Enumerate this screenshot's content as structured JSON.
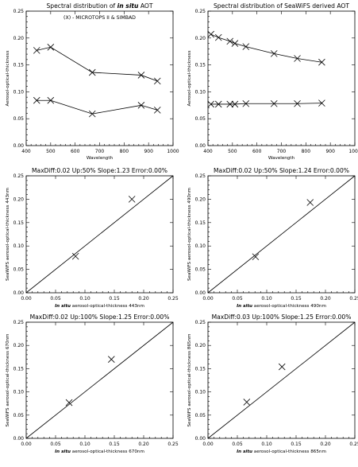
{
  "chart_data": [
    {
      "type": "line",
      "title_parts": [
        {
          "text": "Spectral distribution of ",
          "italic": false
        },
        {
          "text": "in situ",
          "italic": true
        },
        {
          "text": " AOT",
          "italic": false
        }
      ],
      "annotation": "(X) - MICROTOPS II & SIMBAD",
      "xlabel": "Wavelength",
      "ylabel": "Aerosol-optical-thickness",
      "xlim": [
        400,
        1000
      ],
      "ylim": [
        0.0,
        0.25
      ],
      "xticks": [
        "400",
        "500",
        "600",
        "700",
        "800",
        "900",
        "1000"
      ],
      "yticks": [
        "0.00",
        "0.05",
        "0.10",
        "0.15",
        "0.20",
        "0.25"
      ],
      "series": [
        {
          "x": [
            443,
            500,
            670,
            870,
            936
          ],
          "y": [
            0.177,
            0.183,
            0.136,
            0.131,
            0.12
          ]
        },
        {
          "x": [
            443,
            500,
            670,
            870,
            936
          ],
          "y": [
            0.084,
            0.084,
            0.059,
            0.075,
            0.066
          ]
        }
      ]
    },
    {
      "type": "line",
      "title_parts": [
        {
          "text": "Spectral distribution of SeaWiFS derived AOT",
          "italic": false
        }
      ],
      "annotation": "",
      "xlabel": "Wavelength",
      "ylabel": "Aerosol-optical-thickness",
      "xlim": [
        400,
        1000
      ],
      "ylim": [
        0.0,
        0.25
      ],
      "xticks": [
        "400",
        "500",
        "600",
        "700",
        "800",
        "900",
        "1000"
      ],
      "yticks": [
        "0.00",
        "0.05",
        "0.10",
        "0.15",
        "0.20",
        "0.25"
      ],
      "series": [
        {
          "x": [
            412,
            443,
            490,
            510,
            555,
            670,
            765,
            865
          ],
          "y": [
            0.207,
            0.201,
            0.194,
            0.19,
            0.184,
            0.171,
            0.162,
            0.155
          ]
        },
        {
          "x": [
            412,
            443,
            490,
            510,
            555,
            670,
            765,
            865
          ],
          "y": [
            0.077,
            0.077,
            0.077,
            0.077,
            0.078,
            0.078,
            0.078,
            0.079
          ]
        }
      ]
    },
    {
      "type": "scatter",
      "title_parts": [
        {
          "text": "MaxDiff:0.02 Up:50% Slope:1.23 Error:0.00%",
          "italic": false
        }
      ],
      "xlabel_parts": [
        {
          "text": "In situ",
          "italic": true
        },
        {
          "text": " aerosol-optical-thickness 443nm",
          "italic": false
        }
      ],
      "ylabel": "SeaWiFS aerosol-optical-thickness 443nm",
      "xlim": [
        0.0,
        0.25
      ],
      "ylim": [
        0.0,
        0.25
      ],
      "xticks": [
        "0.00",
        "0.05",
        "0.10",
        "0.15",
        "0.20",
        "0.25"
      ],
      "yticks": [
        "0.00",
        "0.05",
        "0.10",
        "0.15",
        "0.20",
        "0.25"
      ],
      "diagonal": true,
      "points": {
        "x": [
          0.084,
          0.18
        ],
        "y": [
          0.078,
          0.2
        ]
      }
    },
    {
      "type": "scatter",
      "title_parts": [
        {
          "text": "MaxDiff:0.02 Up:50% Slope:1.24 Error:0.00%",
          "italic": false
        }
      ],
      "xlabel_parts": [
        {
          "text": "In situ",
          "italic": true
        },
        {
          "text": " aerosol-optical-thickness 490nm",
          "italic": false
        }
      ],
      "ylabel": "SeaWiFS aerosol-optical-thickness 490nm",
      "xlim": [
        0.0,
        0.25
      ],
      "ylim": [
        0.0,
        0.25
      ],
      "xticks": [
        "0.00",
        "0.05",
        "0.10",
        "0.15",
        "0.20",
        "0.25"
      ],
      "yticks": [
        "0.00",
        "0.05",
        "0.10",
        "0.15",
        "0.20",
        "0.25"
      ],
      "diagonal": true,
      "points": {
        "x": [
          0.081,
          0.174
        ],
        "y": [
          0.077,
          0.193
        ]
      }
    },
    {
      "type": "scatter",
      "title_parts": [
        {
          "text": "MaxDiff:0.02 Up:100% Slope:1.25 Error:0.00%",
          "italic": false
        }
      ],
      "xlabel_parts": [
        {
          "text": "In situ",
          "italic": true
        },
        {
          "text": " aerosol-optical-thickness 670nm",
          "italic": false
        }
      ],
      "ylabel": "SeaWiFS aerosol-optical-thickness 670nm",
      "xlim": [
        0.0,
        0.25
      ],
      "ylim": [
        0.0,
        0.25
      ],
      "xticks": [
        "0.00",
        "0.05",
        "0.10",
        "0.15",
        "0.20",
        "0.25"
      ],
      "yticks": [
        "0.00",
        "0.05",
        "0.10",
        "0.15",
        "0.20",
        "0.25"
      ],
      "diagonal": true,
      "points": {
        "x": [
          0.073,
          0.145
        ],
        "y": [
          0.077,
          0.17
        ]
      }
    },
    {
      "type": "scatter",
      "title_parts": [
        {
          "text": "MaxDiff:0.03 Up:100% Slope:1.25 Error:0.00%",
          "italic": false
        }
      ],
      "xlabel_parts": [
        {
          "text": "In situ",
          "italic": true
        },
        {
          "text": " aerosol-optical-thickness 865nm",
          "italic": false
        }
      ],
      "ylabel": "SeaWiFS aerosol-optical-thickness 865nm",
      "xlim": [
        0.0,
        0.25
      ],
      "ylim": [
        0.0,
        0.25
      ],
      "xticks": [
        "0.00",
        "0.05",
        "0.10",
        "0.15",
        "0.20",
        "0.25"
      ],
      "yticks": [
        "0.00",
        "0.05",
        "0.10",
        "0.15",
        "0.20",
        "0.25"
      ],
      "diagonal": true,
      "points": {
        "x": [
          0.066,
          0.126
        ],
        "y": [
          0.078,
          0.154
        ]
      }
    }
  ]
}
